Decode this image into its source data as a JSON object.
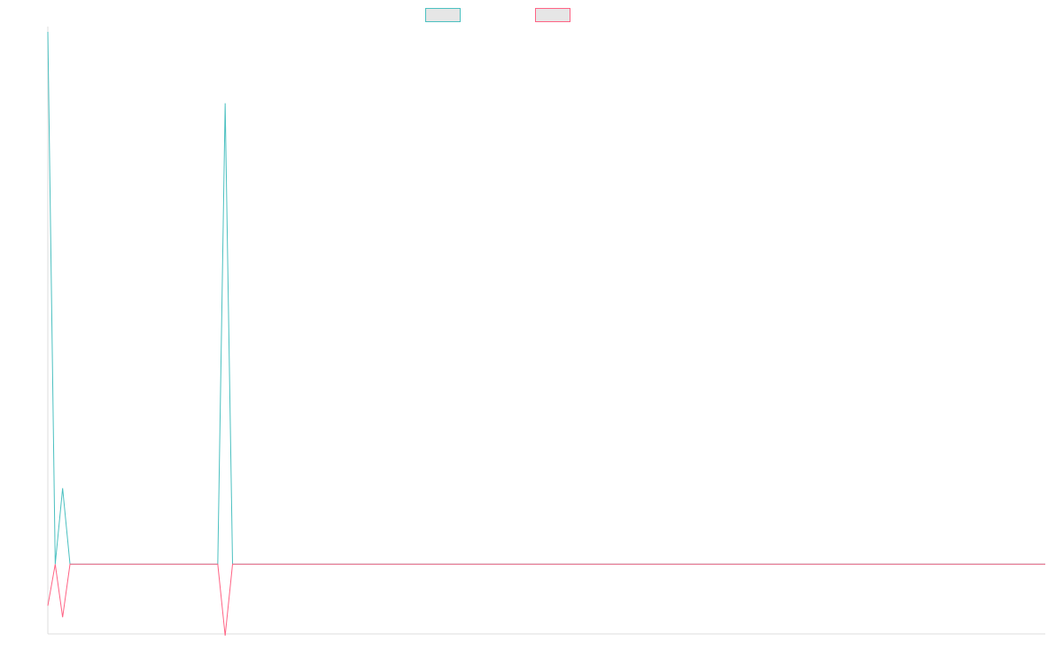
{
  "chart_data": {
    "type": "line",
    "title": "",
    "xlabel": "",
    "ylabel": "",
    "grid": false,
    "legend_position": "top-center",
    "ylim": [
      -0.155,
      1.155
    ],
    "x_count": 136,
    "series": [
      {
        "name": "",
        "color": "#4bc0c0",
        "points": [
          [
            0,
            1.155
          ],
          [
            1,
            0
          ],
          [
            2,
            0.165
          ],
          [
            3,
            0
          ],
          [
            23,
            0
          ],
          [
            24,
            1.0
          ],
          [
            25,
            0
          ],
          [
            135,
            0
          ]
        ]
      },
      {
        "name": "",
        "color": "#ff6384",
        "points": [
          [
            0,
            -0.09
          ],
          [
            1,
            0
          ],
          [
            2,
            -0.115
          ],
          [
            3,
            0
          ],
          [
            23,
            0
          ],
          [
            24,
            -0.155
          ],
          [
            25,
            0
          ],
          [
            135,
            0
          ]
        ]
      }
    ],
    "colors": {
      "axis": "#dddddd",
      "legend_fill": "#e6e6e6"
    }
  }
}
